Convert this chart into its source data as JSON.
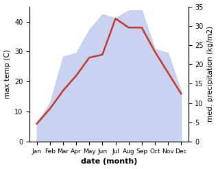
{
  "months": [
    "Jan",
    "Feb",
    "Mar",
    "Apr",
    "May",
    "Jun",
    "Jul",
    "Aug",
    "Sep",
    "Oct",
    "Nov",
    "Dec"
  ],
  "month_indices": [
    0,
    1,
    2,
    3,
    4,
    5,
    6,
    7,
    8,
    9,
    10,
    11
  ],
  "temperature": [
    6,
    11,
    17,
    22,
    28,
    29,
    41,
    38,
    38,
    30,
    23,
    16
  ],
  "precipitation": [
    5,
    10,
    22,
    23,
    29,
    33,
    32,
    34,
    34,
    24,
    23,
    13
  ],
  "temp_color": "#c0392b",
  "precip_fill_color": "#c5cdf0",
  "temp_ylim": [
    0,
    45
  ],
  "precip_ylim": [
    0,
    35
  ],
  "temp_yticks": [
    0,
    10,
    20,
    30,
    40
  ],
  "precip_yticks": [
    0,
    5,
    10,
    15,
    20,
    25,
    30,
    35
  ],
  "xlabel": "date (month)",
  "ylabel_left": "max temp (C)",
  "ylabel_right": "med. precipitation (kg/m2)",
  "background_color": "#ffffff",
  "line_width": 1.8,
  "xlabel_fontsize": 8,
  "ylabel_fontsize": 7.5,
  "tick_fontsize": 7,
  "xtick_fontsize": 6.5
}
